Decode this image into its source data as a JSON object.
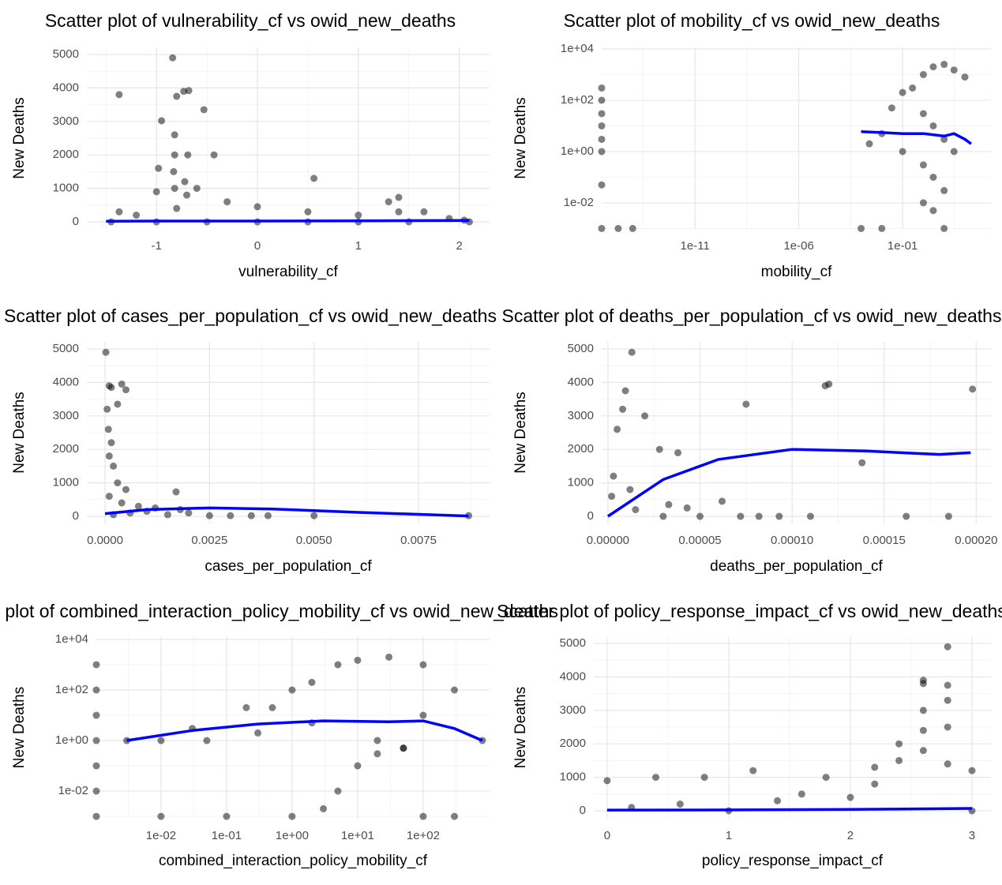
{
  "chart_data": [
    {
      "type": "scatter",
      "title": "Scatter plot of vulnerability_cf vs owid_new_deaths",
      "x_label": "vulnerability_cf",
      "y_label": "New Deaths",
      "xlim": [
        -1.69,
        2.3
      ],
      "ylim": [
        -212,
        5212
      ],
      "xticks": [
        -1,
        0,
        1,
        2
      ],
      "yticks": [
        0,
        1000,
        2000,
        3000,
        4000,
        5000
      ],
      "grid": true,
      "points": {
        "color": "#000000",
        "x": [
          -1.37,
          -0.84,
          -0.8,
          -0.73,
          -0.68,
          -0.53,
          -0.95,
          -0.82,
          -0.82,
          -0.69,
          -0.43,
          -0.83,
          -0.98,
          0.56,
          1.4,
          -1.37,
          -1,
          -0.7,
          -0.3,
          0,
          0.5,
          1,
          1.4,
          1.65,
          1.9,
          2.05,
          -1.45,
          -1,
          -0.5,
          0,
          0.5,
          1,
          1.5,
          2.1,
          -0.82,
          -0.8,
          -1.2,
          1.3,
          -0.72,
          -0.6
        ],
        "y": [
          3800,
          4900,
          3750,
          3900,
          3920,
          3350,
          3020,
          2600,
          2000,
          2000,
          2000,
          1500,
          1600,
          1300,
          730,
          300,
          900,
          800,
          600,
          450,
          300,
          200,
          300,
          300,
          100,
          50,
          0,
          0,
          0,
          0,
          0,
          0,
          0,
          0,
          1000,
          400,
          200,
          600,
          1200,
          1000
        ]
      },
      "smooth": {
        "color": "#0000ff",
        "x": [
          -1.5,
          -1,
          0,
          1,
          2.1
        ],
        "y": [
          20,
          25,
          25,
          30,
          40
        ]
      }
    },
    {
      "type": "scatter",
      "title": "Scatter plot of mobility_cf vs owid_new_deaths",
      "x_label": "mobility_cf",
      "y_label": "New Deaths",
      "xlog": true,
      "ylog": true,
      "xlim": [
        3.2e-16,
        1800
      ],
      "ylim": [
        0.00096,
        11500
      ],
      "xticks": [
        1e-11,
        {
          "value": 1e-06,
          "label": "1e-06"
        },
        {
          "value": 0.1,
          "label": "1e-01"
        }
      ],
      "yticks": [
        {
          "value": 0.01,
          "label": "1e-02"
        },
        {
          "value": 1,
          "label": "1e+00"
        },
        {
          "value": 100,
          "label": "1e+02"
        },
        {
          "value": 10000,
          "label": "1e+04"
        }
      ],
      "grid": true,
      "points": {
        "color": "#000000",
        "x": [
          3.2e-16,
          3.2e-16,
          3.2e-16,
          3.2e-16,
          3.2e-16,
          3.2e-16,
          3.2e-16,
          3.2e-16,
          0.0025,
          0.01,
          0.03,
          0.1,
          1,
          3,
          10,
          30,
          100,
          0.3,
          1,
          3,
          10,
          30,
          0.1,
          1,
          3,
          10,
          3,
          1,
          10,
          0.01,
          0.001,
          1e-14,
          2e-15
        ],
        "y": [
          300,
          100,
          30,
          10,
          3,
          1,
          0.05,
          0.001,
          2,
          5,
          50,
          200,
          1000,
          2000,
          2500,
          1500,
          800,
          300,
          30,
          10,
          3,
          1,
          1,
          0.3,
          0.1,
          0.03,
          0.005,
          0.01,
          0.001,
          0.001,
          0.001,
          0.001,
          0.001
        ]
      },
      "smooth": {
        "color": "#0000ff",
        "x": [
          0.001,
          0.01,
          0.1,
          1,
          10,
          30,
          100,
          200
        ],
        "y": [
          6,
          5.5,
          5,
          5,
          4,
          5,
          3,
          2
        ]
      }
    },
    {
      "type": "scatter",
      "title": "Scatter plot of cases_per_population_cf vs owid_new_deaths",
      "x_label": "cases_per_population_cf",
      "y_label": "New Deaths",
      "xlim": [
        -0.000435,
        0.0092
      ],
      "ylim": [
        -212,
        5212
      ],
      "xticks": [
        {
          "value": 0,
          "label": "0.0000"
        },
        0.0025,
        {
          "value": 0.005,
          "label": "0.0050"
        },
        0.0075
      ],
      "yticks": [
        0,
        1000,
        2000,
        3000,
        4000,
        5000
      ],
      "grid": true,
      "points": {
        "color": "#000000",
        "x": [
          2e-05,
          0.0001,
          0.00015,
          0.0004,
          0.0005,
          0.0003,
          5e-05,
          8e-05,
          0.00015,
          0.0001,
          0.0002,
          0.0003,
          0.0005,
          0.0017,
          0.0008,
          0.0012,
          0.0018,
          0.002,
          0.0025,
          0.003,
          0.0035,
          0.0039,
          0.005,
          0.0087,
          0.0002,
          0.0001,
          0.0004,
          0.0006,
          0.0015,
          0.001
        ],
        "y": [
          4900,
          3900,
          3850,
          3950,
          3780,
          3350,
          3200,
          2600,
          2200,
          1800,
          1500,
          1000,
          800,
          730,
          300,
          250,
          200,
          100,
          20,
          20,
          20,
          20,
          20,
          20,
          50,
          600,
          400,
          100,
          50,
          150
        ]
      },
      "smooth": {
        "color": "#0000ff",
        "x": [
          0,
          0.001,
          0.0025,
          0.004,
          0.006,
          0.0087
        ],
        "y": [
          80,
          200,
          250,
          220,
          120,
          10
        ]
      }
    },
    {
      "type": "scatter",
      "title": "Scatter plot of deaths_per_population_cf vs owid_new_deaths",
      "x_label": "deaths_per_population_cf",
      "y_label": "New Deaths",
      "xlim": [
        -3.4e-06,
        0.000208
      ],
      "ylim": [
        -212,
        5212
      ],
      "xticks": [
        {
          "value": 0,
          "label": "0.00000"
        },
        5e-05,
        {
          "value": 0.0001,
          "label": "0.00010"
        },
        0.00015,
        {
          "value": 0.0002,
          "label": "0.00020"
        }
      ],
      "yticks": [
        0,
        1000,
        2000,
        3000,
        4000,
        5000
      ],
      "grid": true,
      "points": {
        "color": "#000000",
        "x": [
          1.3e-05,
          9.5e-06,
          8e-06,
          2e-05,
          2.8e-05,
          3.8e-05,
          7.5e-05,
          0.000118,
          0.00012,
          0.000198,
          0.000138,
          6.2e-05,
          0.000162,
          0.000185,
          0.00011,
          9.3e-05,
          8.2e-05,
          7.2e-05,
          4.3e-05,
          3.3e-05,
          5e-06,
          3e-06,
          2e-06,
          1.2e-05,
          1.5e-05,
          5e-05,
          3e-05
        ],
        "y": [
          4900,
          3750,
          3200,
          3000,
          2000,
          1900,
          3350,
          3900,
          3950,
          3800,
          1600,
          450,
          0,
          0,
          0,
          0,
          0,
          0,
          250,
          350,
          2600,
          1200,
          600,
          800,
          200,
          0,
          0
        ]
      },
      "smooth": {
        "color": "#0000ff",
        "x": [
          0,
          3e-05,
          6e-05,
          0.0001,
          0.00014,
          0.00018,
          0.000197
        ],
        "y": [
          0,
          1100,
          1700,
          2000,
          1950,
          1850,
          1900
        ]
      }
    },
    {
      "type": "scatter",
      "title": "Scatter plot of combined_interaction_policy_mobility_cf vs owid_new_deaths",
      "x_label": "combined_interaction_policy_mobility_cf",
      "y_label": "New Deaths",
      "xlog": true,
      "ylog": true,
      "xlim": [
        0.00103,
        1030
      ],
      "ylim": [
        0.00081,
        13300
      ],
      "xticks": [
        {
          "value": 0.01,
          "label": "1e-02"
        },
        {
          "value": 0.1,
          "label": "1e-01"
        },
        {
          "value": 1,
          "label": "1e+00"
        },
        {
          "value": 10,
          "label": "1e+01"
        },
        {
          "value": 100,
          "label": "1e+02"
        }
      ],
      "yticks": [
        {
          "value": 0.01,
          "label": "1e-02"
        },
        {
          "value": 1,
          "label": "1e+00"
        },
        {
          "value": 100,
          "label": "1e+02"
        },
        {
          "value": 10000,
          "label": "1e+04"
        }
      ],
      "grid": true,
      "points": {
        "color": "#000000",
        "x": [
          0.00103,
          0.00103,
          0.00103,
          0.00103,
          0.00103,
          0.00103,
          0.00103,
          0.01,
          0.03,
          0.2,
          0.5,
          1,
          2,
          5,
          10,
          30,
          100,
          300,
          800,
          50,
          10,
          5,
          3,
          20,
          100,
          0.01,
          0.1,
          1,
          100,
          300,
          0.003,
          0.05,
          0.3,
          2,
          20,
          50
        ],
        "y": [
          1000,
          100,
          10,
          1,
          0.1,
          0.01,
          0.001,
          1,
          3,
          20,
          20,
          100,
          200,
          1000,
          1500,
          2000,
          1000,
          100,
          1,
          0.5,
          0.1,
          0.01,
          0.002,
          1,
          10,
          0.001,
          0.001,
          0.001,
          0.001,
          0.001,
          1,
          1,
          2,
          5,
          0.3,
          0.5
        ]
      },
      "smooth": {
        "color": "#0000ff",
        "x": [
          0.003,
          0.03,
          0.3,
          3,
          30,
          100,
          300,
          800
        ],
        "y": [
          1,
          2.5,
          4.5,
          6,
          5.5,
          6,
          3,
          1
        ]
      }
    },
    {
      "type": "scatter",
      "title": "Scatter plot of policy_response_impact_cf vs owid_new_deaths",
      "x_label": "policy_response_impact_cf",
      "y_label": "New Deaths",
      "xlim": [
        -0.11,
        3.156
      ],
      "ylim": [
        -236,
        5212
      ],
      "xticks": [
        0,
        1,
        2,
        3
      ],
      "yticks": [
        0,
        1000,
        2000,
        3000,
        4000,
        5000
      ],
      "grid": true,
      "points": {
        "color": "#000000",
        "x": [
          2.8,
          2.8,
          2.6,
          2.6,
          2.8,
          2.6,
          2.6,
          2.4,
          2.2,
          1.8,
          1.6,
          1.2,
          0.8,
          0.4,
          0,
          3,
          2.8,
          2.4,
          2.2,
          2.6,
          0.2,
          1,
          2,
          3,
          2.8,
          0.6,
          1.4
        ],
        "y": [
          4900,
          3750,
          3900,
          3800,
          3300,
          2400,
          3000,
          2000,
          1300,
          1000,
          500,
          1200,
          1000,
          1000,
          900,
          1200,
          2500,
          1500,
          800,
          1800,
          100,
          0,
          400,
          0,
          1400,
          200,
          300
        ]
      },
      "smooth": {
        "color": "#0000ff",
        "x": [
          0,
          1,
          2,
          3
        ],
        "y": [
          20,
          25,
          40,
          70
        ]
      }
    }
  ]
}
